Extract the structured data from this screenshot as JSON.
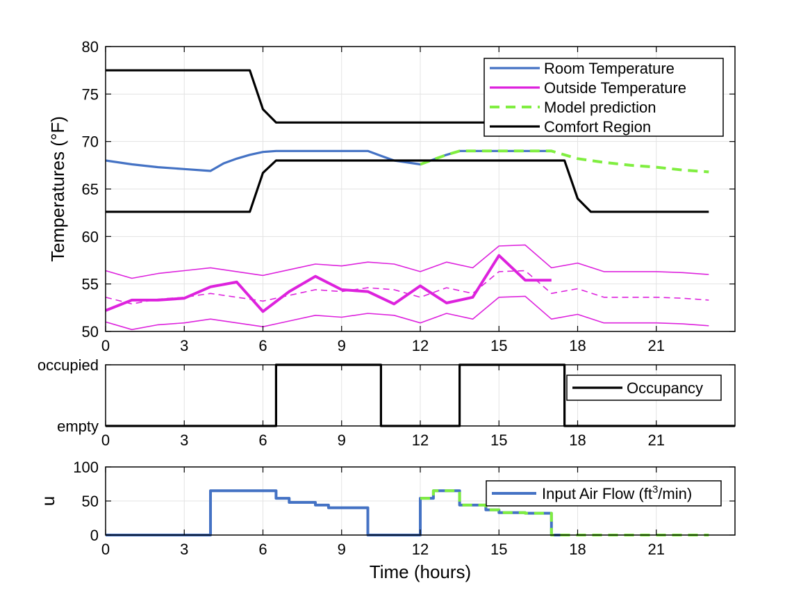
{
  "chart_data": [
    {
      "type": "line",
      "ylabel": "Temperatures (°F)",
      "xlabel": "",
      "xlim": [
        0,
        24
      ],
      "ylim": [
        50,
        80
      ],
      "xticks": [
        0,
        3,
        6,
        9,
        12,
        15,
        18,
        21
      ],
      "xticklabels": [
        "0",
        "3",
        "6",
        "9",
        "12",
        "15",
        "18",
        "21"
      ],
      "yticks": [
        50,
        55,
        60,
        65,
        70,
        75,
        80
      ],
      "yticklabels": [
        "50",
        "55",
        "60",
        "65",
        "70",
        "75",
        "80"
      ],
      "grid": true,
      "legend_position": "top-right",
      "legend": [
        "Room Temperature",
        "Outside Temperature",
        "Model prediction",
        "Comfort Region"
      ],
      "series": [
        {
          "name": "Room Temperature",
          "color": "#4472c4",
          "style": "solid",
          "x": [
            0,
            1,
            2,
            3,
            4,
            4.5,
            5,
            5.5,
            6,
            6.5,
            7,
            8,
            9,
            10,
            10.5,
            11,
            12,
            12.5,
            13,
            13.5,
            14,
            15,
            16,
            17
          ],
          "y": [
            68.0,
            67.6,
            67.3,
            67.1,
            66.9,
            67.7,
            68.2,
            68.6,
            68.9,
            69.0,
            69.0,
            69.0,
            69.0,
            69.0,
            68.5,
            68.0,
            67.6,
            68.1,
            68.6,
            69.0,
            69.0,
            69.0,
            69.0,
            69.0
          ]
        },
        {
          "name": "Outside Temperature",
          "color": "#dd22dd",
          "style": "thick",
          "x": [
            0,
            1,
            2,
            3,
            4,
            5,
            6,
            7,
            8,
            9,
            10,
            11,
            12,
            13,
            14,
            15,
            16,
            17
          ],
          "y": [
            52.2,
            53.3,
            53.3,
            53.5,
            54.7,
            55.2,
            52.1,
            54.2,
            55.8,
            54.4,
            54.2,
            52.9,
            54.8,
            53.0,
            53.6,
            58.0,
            55.4,
            55.4
          ]
        },
        {
          "name": "Outside Temperature upper bound",
          "color": "#dd22dd",
          "style": "thin",
          "x": [
            0,
            1,
            2,
            3,
            4,
            5,
            6,
            7,
            8,
            9,
            10,
            11,
            12,
            13,
            14,
            15,
            16,
            17,
            18,
            19,
            20,
            21,
            22,
            23
          ],
          "y": [
            56.4,
            55.6,
            56.1,
            56.4,
            56.7,
            56.3,
            55.9,
            56.5,
            57.1,
            56.9,
            57.3,
            57.1,
            56.3,
            57.3,
            56.7,
            59.0,
            59.1,
            56.7,
            57.2,
            56.3,
            56.3,
            56.3,
            56.2,
            56.0
          ]
        },
        {
          "name": "Outside Temperature lower bound",
          "color": "#dd22dd",
          "style": "thin",
          "x": [
            0,
            1,
            2,
            3,
            4,
            5,
            6,
            7,
            8,
            9,
            10,
            11,
            12,
            13,
            14,
            15,
            16,
            17,
            18,
            19,
            20,
            21,
            22,
            23
          ],
          "y": [
            51.0,
            50.2,
            50.7,
            50.9,
            51.3,
            50.9,
            50.5,
            51.1,
            51.7,
            51.5,
            51.9,
            51.7,
            50.9,
            51.9,
            51.3,
            53.6,
            53.7,
            51.3,
            51.8,
            50.9,
            50.9,
            50.9,
            50.8,
            50.6
          ]
        },
        {
          "name": "Outside Temperature forecast",
          "color": "#dd22dd",
          "style": "thin-dashed",
          "x": [
            0,
            1,
            2,
            3,
            4,
            5,
            6,
            7,
            8,
            9,
            10,
            11,
            12,
            13,
            14,
            15,
            16,
            17,
            18,
            19,
            20,
            21,
            22,
            23
          ],
          "y": [
            53.6,
            52.9,
            53.4,
            53.6,
            54.0,
            53.6,
            53.2,
            53.8,
            54.4,
            54.2,
            54.6,
            54.4,
            53.6,
            54.6,
            54.0,
            56.3,
            56.4,
            54.0,
            54.5,
            53.6,
            53.6,
            53.6,
            53.5,
            53.3
          ]
        },
        {
          "name": "Model prediction",
          "color": "#80ee40",
          "style": "dashed",
          "x": [
            12,
            12.5,
            13,
            13.5,
            14,
            15,
            16,
            17,
            17.5,
            18,
            19,
            20,
            21,
            22,
            23
          ],
          "y": [
            67.6,
            68.1,
            68.6,
            69.0,
            69.0,
            69.0,
            69.0,
            69.0,
            68.6,
            68.2,
            67.8,
            67.5,
            67.3,
            67.0,
            66.8
          ]
        },
        {
          "name": "Comfort Region upper",
          "color": "#000000",
          "style": "solid",
          "x": [
            0,
            5.5,
            6,
            6.5,
            17.5,
            18,
            18.5,
            23
          ],
          "y": [
            77.5,
            77.5,
            73.4,
            72.0,
            72.0,
            72.0,
            72.0,
            72.0
          ]
        },
        {
          "name": "Comfort Region lower",
          "color": "#000000",
          "style": "solid",
          "x": [
            0,
            5.5,
            6,
            6.5,
            17.5,
            18,
            18.5,
            23
          ],
          "y": [
            62.6,
            62.6,
            66.7,
            68.0,
            68.0,
            64.0,
            62.6,
            62.6
          ]
        }
      ]
    },
    {
      "type": "line",
      "ylabel": "",
      "xlabel": "",
      "xlim": [
        0,
        24
      ],
      "ylim": [
        0,
        1
      ],
      "xticks": [
        0,
        3,
        6,
        9,
        12,
        15,
        18,
        21
      ],
      "xticklabels": [
        "0",
        "3",
        "6",
        "9",
        "12",
        "15",
        "18",
        "21"
      ],
      "yticks": [
        0,
        1
      ],
      "yticklabels": [
        "empty",
        "occupied"
      ],
      "grid": true,
      "legend_position": "right",
      "legend": [
        "Occupancy"
      ],
      "series": [
        {
          "name": "Occupancy",
          "color": "#000000",
          "style": "solid",
          "x": [
            0,
            6.5,
            6.5,
            10.5,
            10.5,
            13.5,
            13.5,
            17.5,
            17.5,
            24
          ],
          "y": [
            0,
            0,
            1,
            1,
            0,
            0,
            1,
            1,
            0,
            0
          ]
        }
      ]
    },
    {
      "type": "line",
      "ylabel": "u",
      "xlabel": "Time (hours)",
      "xlim": [
        0,
        24
      ],
      "ylim": [
        0,
        100
      ],
      "xticks": [
        0,
        3,
        6,
        9,
        12,
        15,
        18,
        21
      ],
      "xticklabels": [
        "0",
        "3",
        "6",
        "9",
        "12",
        "15",
        "18",
        "21"
      ],
      "yticks": [
        0,
        50,
        100
      ],
      "yticklabels": [
        "0",
        "50",
        "100"
      ],
      "grid": true,
      "legend_position": "top-right",
      "legend_prefix": "Input Air Flow (ft",
      "legend_sup": "3",
      "legend_suffix": "/min)",
      "series": [
        {
          "name": "Input Air Flow",
          "color": "#4472c4",
          "style": "thick",
          "x": [
            0,
            4,
            4,
            6.5,
            6.5,
            7,
            7,
            8,
            8,
            8.5,
            8.5,
            10,
            10,
            12,
            12,
            12.5,
            12.5,
            13.5,
            13.5,
            14.5,
            14.5,
            15,
            15,
            16,
            16,
            17,
            17,
            17.5
          ],
          "y": [
            0,
            0,
            65,
            65,
            54,
            54,
            48,
            48,
            44,
            44,
            40,
            40,
            0,
            0,
            54,
            54,
            65,
            65,
            44,
            44,
            37,
            37,
            33,
            33,
            32,
            32,
            0,
            0
          ]
        },
        {
          "name": "Model prediction",
          "color": "#80ee40",
          "style": "dashed",
          "x": [
            12,
            12.5,
            12.5,
            13.5,
            13.5,
            14.5,
            14.5,
            15,
            15,
            16,
            16,
            17,
            17,
            23
          ],
          "y": [
            54,
            54,
            65,
            65,
            44,
            44,
            37,
            37,
            33,
            33,
            32,
            32,
            0,
            0
          ]
        }
      ]
    }
  ]
}
